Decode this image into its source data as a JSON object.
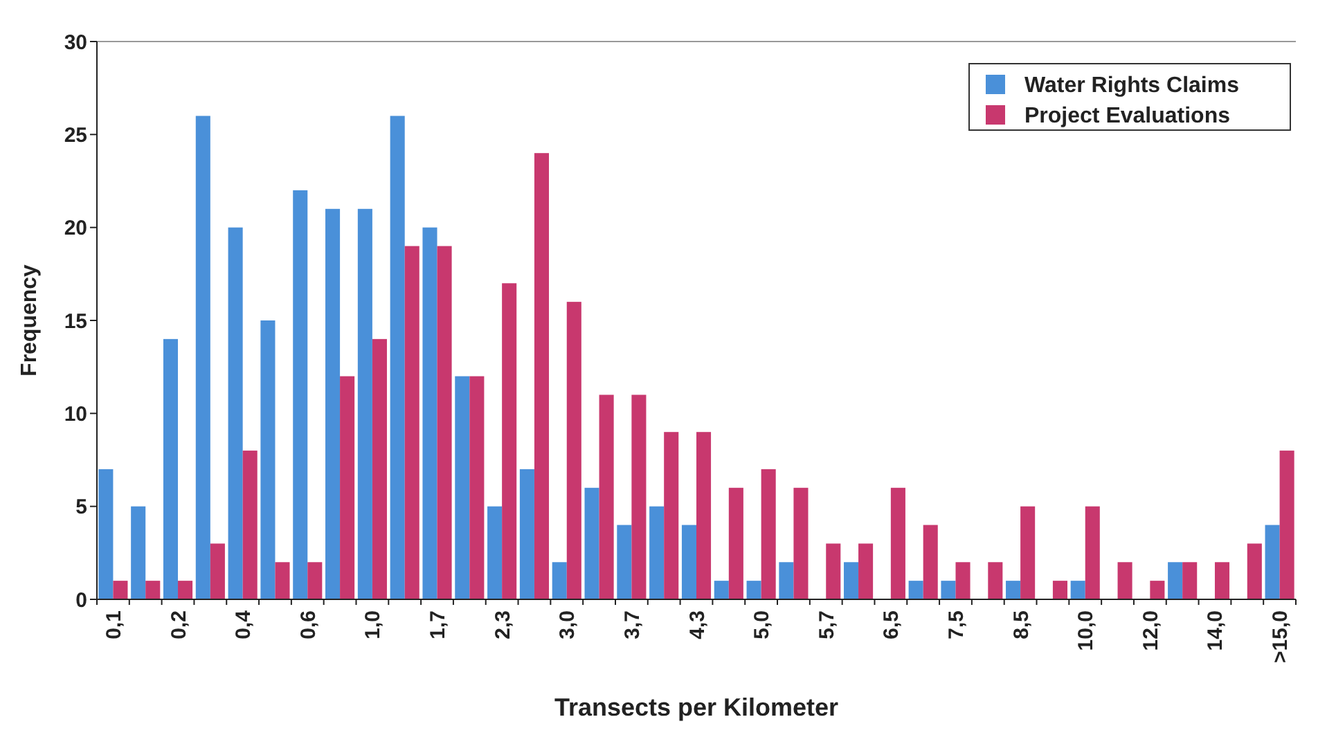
{
  "chart_data": {
    "type": "bar",
    "xlabel": "Transects per Kilometer",
    "ylabel": "Frequency",
    "categories": [
      "0,1",
      null,
      "0,2",
      null,
      "0,4",
      null,
      "0,6",
      null,
      "1,0",
      null,
      "1,7",
      null,
      "2,3",
      null,
      "3,0",
      null,
      "3,7",
      null,
      "4,3",
      null,
      "5,0",
      null,
      "5,7",
      null,
      "6,5",
      null,
      "7,5",
      null,
      "8,5",
      null,
      "10,0",
      null,
      "12,0",
      null,
      "14,0",
      null,
      ">15,0"
    ],
    "series": [
      {
        "name": "Water Rights Claims",
        "color": "#4a90d9",
        "values": [
          7,
          5,
          14,
          26,
          20,
          15,
          22,
          21,
          21,
          26,
          20,
          12,
          5,
          7,
          2,
          6,
          4,
          5,
          4,
          1,
          1,
          2,
          0,
          2,
          0,
          1,
          1,
          0,
          1,
          0,
          1,
          0,
          0,
          2,
          0,
          0,
          4
        ]
      },
      {
        "name": "Project Evaluations",
        "color": "#c8386e",
        "values": [
          1,
          1,
          1,
          3,
          8,
          2,
          2,
          12,
          14,
          19,
          19,
          12,
          17,
          24,
          16,
          11,
          11,
          9,
          9,
          6,
          7,
          6,
          3,
          3,
          6,
          4,
          2,
          2,
          5,
          1,
          5,
          2,
          1,
          2,
          2,
          3,
          8
        ]
      }
    ],
    "ylim": [
      0,
      30
    ],
    "yticks": [
      0,
      5,
      10,
      15,
      20,
      25,
      30
    ],
    "grid": false,
    "legend": "top right"
  }
}
